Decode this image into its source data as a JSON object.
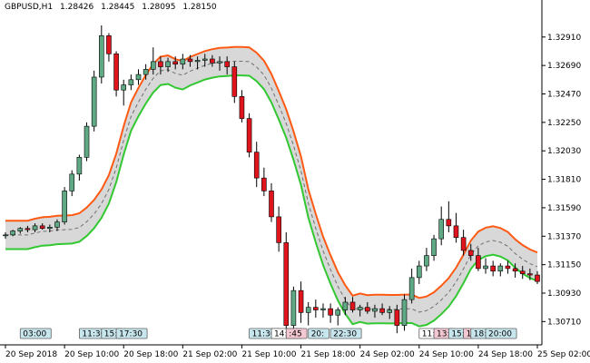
{
  "header": {
    "symbol": "GBPUSD,H1",
    "open": "1.28426",
    "high": "1.28445",
    "low": "1.28095",
    "close": "1.28150"
  },
  "colors": {
    "bull": "#5fa985",
    "bear": "#e0141c",
    "upper_band": "#ff5a14",
    "lower_band": "#32c832",
    "band_fill": "#d8d8d8",
    "mid": "#707070",
    "axis": "#000000"
  },
  "chart_data": {
    "type": "candlestick",
    "y_ticks": [
      "1.32910",
      "1.32690",
      "1.32470",
      "1.32250",
      "1.32030",
      "1.31810",
      "1.31590",
      "1.31370",
      "1.31150",
      "1.30930",
      "1.30710"
    ],
    "ylim": [
      1.3053,
      1.3314
    ],
    "x_tick_labels": [
      "20 Sep 2018",
      "20 Sep 10:00",
      "20 Sep 18:00",
      "21 Sep 02:00",
      "21 Sep 10:00",
      "21 Sep 18:00",
      "24 Sep 02:00",
      "24 Sep 10:00",
      "24 Sep 18:00",
      "25 Sep 02:00"
    ],
    "x_tick_index": [
      0,
      8,
      16,
      24,
      32,
      40,
      48,
      56,
      64,
      72
    ],
    "session_labels": [
      {
        "text": "03:00",
        "index": 2,
        "style": "blue"
      },
      {
        "text": "11:30",
        "index": 10,
        "style": "blue"
      },
      {
        "text": "15:",
        "index": 13,
        "style": "blue"
      },
      {
        "text": "17:30",
        "index": 15,
        "style": "blue"
      },
      {
        "text": "11:30",
        "index": 33,
        "style": "blue"
      },
      {
        "text": "14:00",
        "index": 36,
        "style": "white"
      },
      {
        "text": ":45",
        "index": 38,
        "style": "pink"
      },
      {
        "text": "20:",
        "index": 41,
        "style": "blue"
      },
      {
        "text": "22:30",
        "index": 44,
        "style": "blue"
      },
      {
        "text": "11:",
        "index": 56,
        "style": "white"
      },
      {
        "text": "13:",
        "index": 58,
        "style": "pink"
      },
      {
        "text": "15:",
        "index": 60,
        "style": "blue"
      },
      {
        "text": "1",
        "index": 62,
        "style": "pink"
      },
      {
        "text": "18:",
        "index": 63,
        "style": "blue"
      },
      {
        "text": "20:00",
        "index": 65,
        "style": "blue"
      }
    ],
    "ohlc": [
      [
        1.3138,
        1.314,
        1.3135,
        1.3138
      ],
      [
        1.3138,
        1.3142,
        1.3137,
        1.3141
      ],
      [
        1.3141,
        1.3144,
        1.3139,
        1.3143
      ],
      [
        1.3143,
        1.3145,
        1.314,
        1.3142
      ],
      [
        1.3142,
        1.3147,
        1.314,
        1.3145
      ],
      [
        1.3145,
        1.3147,
        1.3142,
        1.3143
      ],
      [
        1.3143,
        1.3146,
        1.314,
        1.3144
      ],
      [
        1.3144,
        1.315,
        1.3141,
        1.3148
      ],
      [
        1.3148,
        1.3175,
        1.3146,
        1.3172
      ],
      [
        1.3172,
        1.3188,
        1.3168,
        1.3185
      ],
      [
        1.3185,
        1.32,
        1.318,
        1.3198
      ],
      [
        1.3198,
        1.3225,
        1.3195,
        1.3222
      ],
      [
        1.3222,
        1.3265,
        1.3218,
        1.326
      ],
      [
        1.326,
        1.33,
        1.3255,
        1.3292
      ],
      [
        1.3292,
        1.3294,
        1.3272,
        1.3278
      ],
      [
        1.3278,
        1.328,
        1.3245,
        1.325
      ],
      [
        1.325,
        1.3258,
        1.3238,
        1.3254
      ],
      [
        1.3254,
        1.3262,
        1.325,
        1.3258
      ],
      [
        1.3258,
        1.3266,
        1.3254,
        1.3262
      ],
      [
        1.3262,
        1.327,
        1.3258,
        1.3266
      ],
      [
        1.3266,
        1.3283,
        1.3262,
        1.3272
      ],
      [
        1.3272,
        1.3276,
        1.3262,
        1.3268
      ],
      [
        1.3268,
        1.3275,
        1.3264,
        1.3272
      ],
      [
        1.3272,
        1.3276,
        1.3266,
        1.327
      ],
      [
        1.327,
        1.3278,
        1.3266,
        1.3274
      ],
      [
        1.3274,
        1.3277,
        1.3268,
        1.3272
      ],
      [
        1.3272,
        1.3276,
        1.3266,
        1.3273
      ],
      [
        1.3273,
        1.3278,
        1.3268,
        1.3274
      ],
      [
        1.3274,
        1.3277,
        1.3268,
        1.3271
      ],
      [
        1.3271,
        1.3276,
        1.3265,
        1.3272
      ],
      [
        1.3272,
        1.3276,
        1.3262,
        1.3268
      ],
      [
        1.3268,
        1.3272,
        1.324,
        1.3245
      ],
      [
        1.3245,
        1.325,
        1.3225,
        1.3228
      ],
      [
        1.3228,
        1.3232,
        1.3198,
        1.3202
      ],
      [
        1.3202,
        1.321,
        1.3175,
        1.3182
      ],
      [
        1.3182,
        1.319,
        1.3168,
        1.3172
      ],
      [
        1.3172,
        1.3178,
        1.3148,
        1.3152
      ],
      [
        1.3152,
        1.316,
        1.3125,
        1.3132
      ],
      [
        1.3132,
        1.314,
        1.306,
        1.3068
      ],
      [
        1.3068,
        1.3098,
        1.306,
        1.3095
      ],
      [
        1.3095,
        1.3102,
        1.307,
        1.3078
      ],
      [
        1.3078,
        1.3086,
        1.3068,
        1.3082
      ],
      [
        1.3082,
        1.3088,
        1.3074,
        1.308
      ],
      [
        1.308,
        1.3085,
        1.3074,
        1.3081
      ],
      [
        1.3081,
        1.3085,
        1.307,
        1.3076
      ],
      [
        1.3076,
        1.3082,
        1.3068,
        1.308
      ],
      [
        1.308,
        1.309,
        1.3076,
        1.3086
      ],
      [
        1.3086,
        1.309,
        1.3078,
        1.308
      ],
      [
        1.308,
        1.3084,
        1.3075,
        1.3082
      ],
      [
        1.3082,
        1.3086,
        1.3077,
        1.3079
      ],
      [
        1.3079,
        1.3084,
        1.3074,
        1.3081
      ],
      [
        1.3081,
        1.3085,
        1.3076,
        1.3078
      ],
      [
        1.3078,
        1.3083,
        1.3073,
        1.308
      ],
      [
        1.308,
        1.3084,
        1.3062,
        1.3068
      ],
      [
        1.3068,
        1.3092,
        1.3064,
        1.3088
      ],
      [
        1.3088,
        1.3112,
        1.3085,
        1.3105
      ],
      [
        1.3105,
        1.3118,
        1.31,
        1.3114
      ],
      [
        1.3114,
        1.3128,
        1.311,
        1.3122
      ],
      [
        1.3122,
        1.3138,
        1.3118,
        1.3135
      ],
      [
        1.3135,
        1.316,
        1.313,
        1.315
      ],
      [
        1.315,
        1.3164,
        1.314,
        1.3145
      ],
      [
        1.3145,
        1.3155,
        1.3132,
        1.3136
      ],
      [
        1.3136,
        1.3142,
        1.3122,
        1.3126
      ],
      [
        1.3126,
        1.3131,
        1.3118,
        1.3122
      ],
      [
        1.3122,
        1.3128,
        1.311,
        1.3112
      ],
      [
        1.3112,
        1.312,
        1.3108,
        1.3114
      ],
      [
        1.3114,
        1.3118,
        1.3106,
        1.311
      ],
      [
        1.311,
        1.3116,
        1.3106,
        1.3114
      ],
      [
        1.3114,
        1.3118,
        1.3108,
        1.3112
      ],
      [
        1.3112,
        1.3116,
        1.3105,
        1.311
      ],
      [
        1.311,
        1.3114,
        1.3104,
        1.3108
      ],
      [
        1.3108,
        1.3112,
        1.3103,
        1.3107
      ],
      [
        1.3107,
        1.311,
        1.31,
        1.3102
      ]
    ]
  }
}
